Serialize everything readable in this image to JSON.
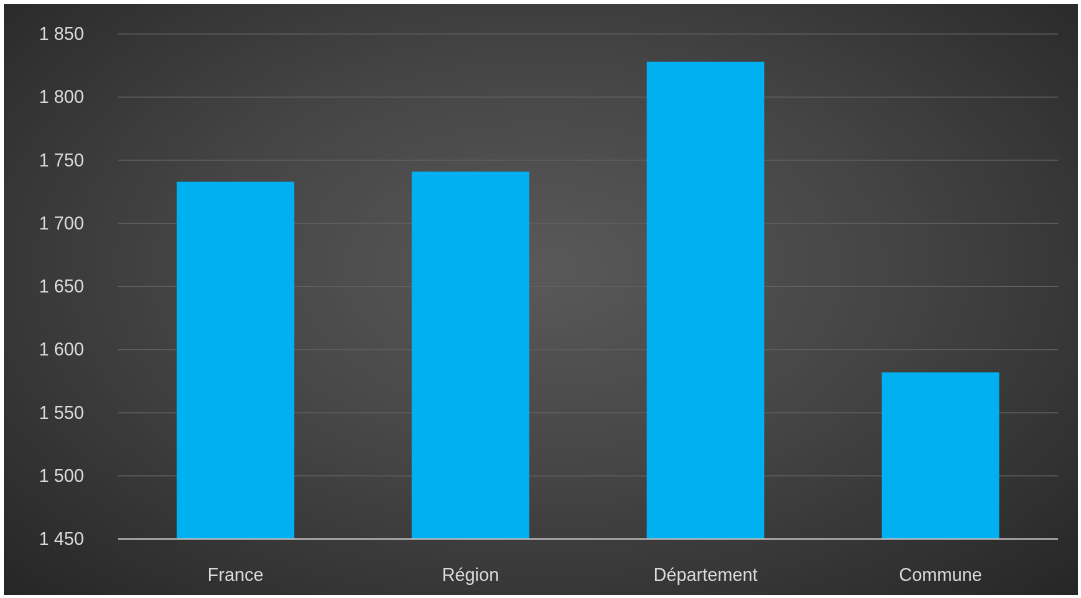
{
  "chart_data": {
    "type": "bar",
    "categories": [
      "France",
      "Région",
      "Département",
      "Commune"
    ],
    "values": [
      1733,
      1741,
      1828,
      1582
    ],
    "ylim": [
      1450,
      1850
    ],
    "yticks": [
      1450,
      1500,
      1550,
      1600,
      1650,
      1700,
      1750,
      1800,
      1850
    ],
    "ytick_labels": [
      "1 450",
      "1 500",
      "1 550",
      "1 600",
      "1 650",
      "1 700",
      "1 750",
      "1 800",
      "1 850"
    ],
    "grid": true,
    "title": "",
    "xlabel": "",
    "ylabel": "",
    "colors": {
      "bar": "#00b0f0",
      "grid": "#5f5f5f",
      "axis": "#bfbfbf",
      "text": "#d9d9d9"
    }
  }
}
